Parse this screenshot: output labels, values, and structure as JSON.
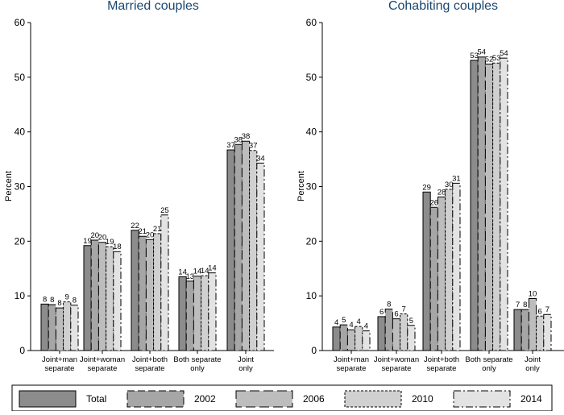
{
  "chart_data": {
    "type": "bar",
    "ylabel": "Percent",
    "ylim": [
      0,
      60
    ],
    "yticks": [
      0,
      10,
      20,
      30,
      40,
      50,
      60
    ],
    "grid": false,
    "legend_position": "bottom",
    "series_names": [
      "Total",
      "2002",
      "2006",
      "2010",
      "2014"
    ],
    "series_colors": [
      "#8c8c8c",
      "#a6a6a6",
      "#bdbdbd",
      "#d0d0d0",
      "#e3e3e3"
    ],
    "panels": [
      {
        "title": "Married couples",
        "categories": [
          [
            "Joint+man",
            "separate"
          ],
          [
            "Joint+woman",
            "separate"
          ],
          [
            "Joint+both",
            "separate"
          ],
          [
            "Both separate",
            "only"
          ],
          [
            "Joint",
            "only"
          ]
        ],
        "series": [
          {
            "name": "Total",
            "values": [
              8.5,
              19.2,
              22.0,
              13.5,
              36.7
            ]
          },
          {
            "name": "2002",
            "values": [
              8.4,
              20.2,
              20.9,
              12.7,
              37.7
            ]
          },
          {
            "name": "2006",
            "values": [
              7.8,
              19.8,
              20.3,
              13.6,
              38.3
            ]
          },
          {
            "name": "2010",
            "values": [
              8.9,
              19.0,
              21.4,
              13.7,
              36.6
            ]
          },
          {
            "name": "2014",
            "values": [
              8.3,
              18.1,
              24.8,
              14.2,
              34.3
            ]
          }
        ],
        "labels": [
          [
            "8",
            "8",
            "8",
            "9",
            "8"
          ],
          [
            "19",
            "20",
            "20",
            "19",
            "18"
          ],
          [
            "22",
            "21",
            "20",
            "21",
            "25"
          ],
          [
            "14",
            "13",
            "14",
            "14",
            "14"
          ],
          [
            "37",
            "38",
            "38",
            "37",
            "34"
          ]
        ]
      },
      {
        "title": "Cohabiting couples",
        "categories": [
          [
            "Joint+man",
            "separate"
          ],
          [
            "Joint+woman",
            "separate"
          ],
          [
            "Joint+both",
            "separate"
          ],
          [
            "Both separate",
            "only"
          ],
          [
            "Joint",
            "only"
          ]
        ],
        "series": [
          {
            "name": "Total",
            "values": [
              4.3,
              6.2,
              29.0,
              53.1,
              7.5
            ]
          },
          {
            "name": "2002",
            "values": [
              4.7,
              7.6,
              26.2,
              53.7,
              7.5
            ]
          },
          {
            "name": "2006",
            "values": [
              3.8,
              5.8,
              28.1,
              52.4,
              9.5
            ]
          },
          {
            "name": "2010",
            "values": [
              4.4,
              6.7,
              29.5,
              52.6,
              6.3
            ]
          },
          {
            "name": "2014",
            "values": [
              3.6,
              4.6,
              30.6,
              53.5,
              6.6
            ]
          }
        ],
        "labels": [
          [
            "4",
            "5",
            "4",
            "4",
            "4"
          ],
          [
            "6",
            "8",
            "6",
            "7",
            "5"
          ],
          [
            "29",
            "26",
            "28",
            "30",
            "31"
          ],
          [
            "53",
            "54",
            "52",
            "53",
            "54"
          ],
          [
            "7",
            "8",
            "10",
            "6",
            "7"
          ]
        ]
      }
    ]
  }
}
